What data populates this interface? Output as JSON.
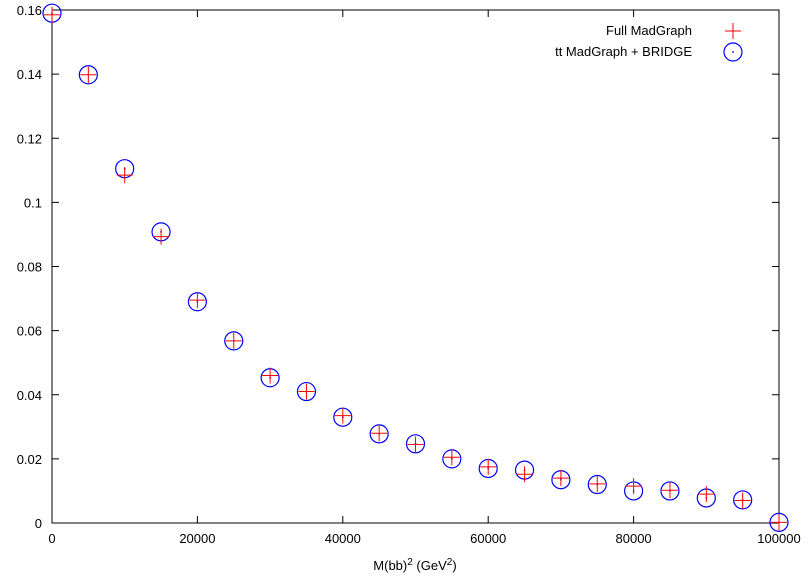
{
  "chart_data": {
    "type": "scatter",
    "title": "",
    "xlabel": {
      "base": "M(bb)",
      "sup1": "2",
      "mid": " (GeV",
      "sup2": "2",
      "end": ")"
    },
    "ylabel": "",
    "xlim": [
      0,
      100000
    ],
    "ylim": [
      0,
      0.16
    ],
    "xticks": [
      "0",
      "20000",
      "40000",
      "60000",
      "80000",
      "100000"
    ],
    "yticks": [
      "0",
      "0.02",
      "0.04",
      "0.06",
      "0.08",
      "0.1",
      "0.12",
      "0.14",
      "0.16"
    ],
    "grid": false,
    "legend_position": "top-right",
    "series": [
      {
        "name": "Full MadGraph",
        "marker": "plus",
        "color": "#ff0000",
        "x": [
          0,
          5000,
          10000,
          15000,
          20000,
          25000,
          30000,
          35000,
          40000,
          45000,
          50000,
          55000,
          60000,
          65000,
          70000,
          75000,
          80000,
          85000,
          90000,
          95000,
          100000
        ],
        "y": [
          0.1585,
          0.1398,
          0.1085,
          0.0893,
          0.0695,
          0.0568,
          0.046,
          0.041,
          0.0335,
          0.028,
          0.0245,
          0.0205,
          0.0175,
          0.0152,
          0.014,
          0.0122,
          0.0115,
          0.0102,
          0.009,
          0.007,
          0.0002
        ]
      },
      {
        "name": "tt MadGraph + BRIDGE",
        "marker": "circle-dot",
        "color": "#0000ff",
        "x": [
          0,
          5000,
          10000,
          15000,
          20000,
          25000,
          30000,
          35000,
          40000,
          45000,
          50000,
          55000,
          60000,
          65000,
          70000,
          75000,
          80000,
          85000,
          90000,
          95000,
          100000
        ],
        "y": [
          0.159,
          0.1398,
          0.1105,
          0.0908,
          0.069,
          0.0568,
          0.0453,
          0.041,
          0.033,
          0.0278,
          0.0247,
          0.02,
          0.017,
          0.0165,
          0.0135,
          0.012,
          0.01,
          0.01,
          0.0078,
          0.0072,
          0.0002
        ]
      }
    ]
  }
}
